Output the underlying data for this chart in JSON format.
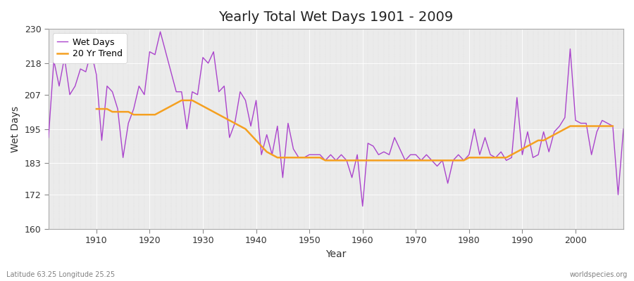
{
  "title": "Yearly Total Wet Days 1901 - 2009",
  "xlabel": "Year",
  "ylabel": "Wet Days",
  "bottom_left_label": "Latitude 63.25 Longitude 25.25",
  "bottom_right_label": "worldspecies.org",
  "ylim": [
    160,
    230
  ],
  "yticks": [
    160,
    172,
    183,
    195,
    207,
    218,
    230
  ],
  "xlim": [
    1901,
    2009
  ],
  "bg_color": "#ebebeb",
  "line_color": "#aa44cc",
  "trend_color": "#f5a020",
  "legend_entries": [
    "Wet Days",
    "20 Yr Trend"
  ],
  "years": [
    1901,
    1902,
    1903,
    1904,
    1905,
    1906,
    1907,
    1908,
    1909,
    1910,
    1911,
    1912,
    1913,
    1914,
    1915,
    1916,
    1917,
    1918,
    1919,
    1920,
    1921,
    1922,
    1923,
    1924,
    1925,
    1926,
    1927,
    1928,
    1929,
    1930,
    1931,
    1932,
    1933,
    1934,
    1935,
    1936,
    1937,
    1938,
    1939,
    1940,
    1941,
    1942,
    1943,
    1944,
    1945,
    1946,
    1947,
    1948,
    1949,
    1950,
    1951,
    1952,
    1953,
    1954,
    1955,
    1956,
    1957,
    1958,
    1959,
    1960,
    1961,
    1962,
    1963,
    1964,
    1965,
    1966,
    1967,
    1968,
    1969,
    1970,
    1971,
    1972,
    1973,
    1974,
    1975,
    1976,
    1977,
    1978,
    1979,
    1980,
    1981,
    1982,
    1983,
    1984,
    1985,
    1986,
    1987,
    1988,
    1989,
    1990,
    1991,
    1992,
    1993,
    1994,
    1995,
    1996,
    1997,
    1998,
    1999,
    2000,
    2001,
    2002,
    2003,
    2004,
    2005,
    2006,
    2007,
    2008,
    2009
  ],
  "wet_days": [
    192,
    219,
    210,
    220,
    207,
    210,
    216,
    215,
    222,
    214,
    191,
    210,
    208,
    202,
    185,
    197,
    202,
    210,
    207,
    222,
    221,
    229,
    222,
    215,
    208,
    208,
    195,
    208,
    207,
    220,
    218,
    222,
    208,
    210,
    192,
    197,
    208,
    205,
    196,
    205,
    186,
    193,
    186,
    196,
    178,
    197,
    188,
    185,
    185,
    186,
    186,
    186,
    184,
    186,
    184,
    186,
    184,
    178,
    186,
    168,
    190,
    189,
    186,
    187,
    186,
    192,
    188,
    184,
    186,
    186,
    184,
    186,
    184,
    182,
    184,
    176,
    184,
    186,
    184,
    186,
    195,
    186,
    192,
    186,
    185,
    187,
    184,
    185,
    206,
    186,
    194,
    185,
    186,
    194,
    187,
    194,
    196,
    199,
    223,
    198,
    197,
    197,
    186,
    194,
    198,
    197,
    196,
    172,
    195
  ],
  "trend_values": [
    null,
    null,
    null,
    null,
    null,
    null,
    null,
    null,
    null,
    202,
    202,
    202,
    201,
    201,
    201,
    201,
    200,
    200,
    200,
    200,
    200,
    201,
    202,
    203,
    204,
    205,
    205,
    205,
    204,
    203,
    202,
    201,
    200,
    199,
    198,
    197,
    196,
    195,
    193,
    191,
    189,
    187,
    186,
    185,
    185,
    185,
    185,
    185,
    185,
    185,
    185,
    185,
    184,
    184,
    184,
    184,
    184,
    184,
    184,
    184,
    184,
    184,
    184,
    184,
    184,
    184,
    184,
    184,
    184,
    184,
    184,
    184,
    184,
    184,
    184,
    184,
    184,
    184,
    184,
    185,
    185,
    185,
    185,
    185,
    185,
    185,
    185,
    186,
    187,
    188,
    189,
    190,
    191,
    191,
    192,
    193,
    194,
    195,
    196,
    196,
    196,
    196,
    196,
    196,
    196,
    196,
    196,
    null,
    null
  ]
}
